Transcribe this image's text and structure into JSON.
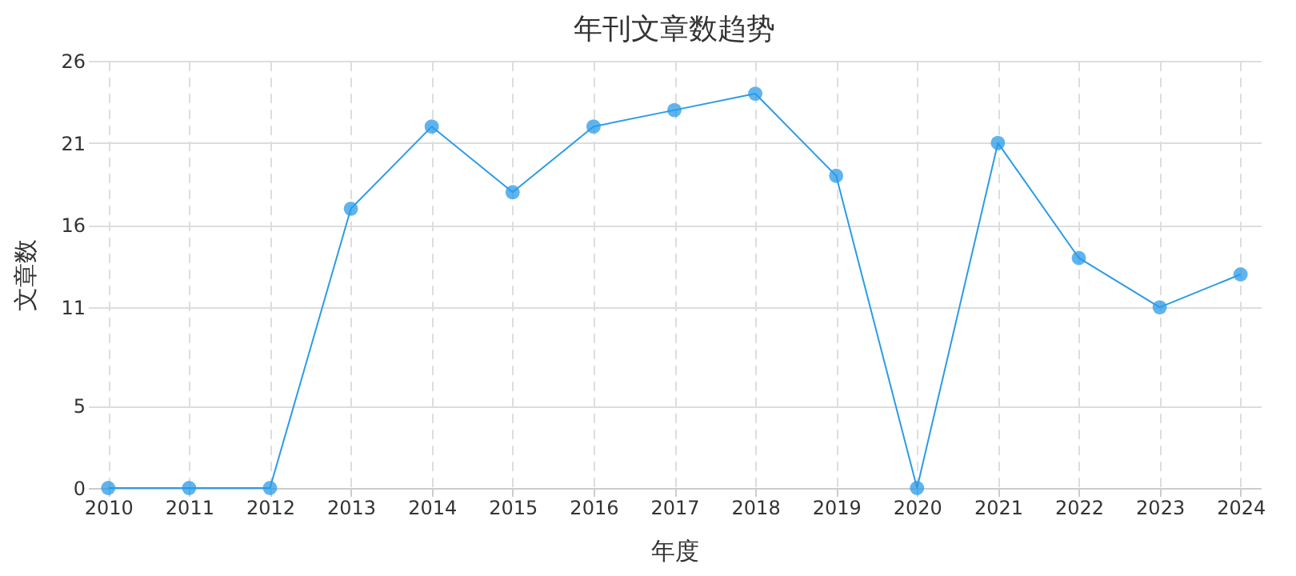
{
  "chart_data": {
    "type": "line",
    "title": "年刊文章数趋势",
    "xlabel": "年度",
    "ylabel": "文章数",
    "categories": [
      "2010",
      "2011",
      "2012",
      "2013",
      "2014",
      "2015",
      "2016",
      "2017",
      "2018",
      "2019",
      "2020",
      "2021",
      "2022",
      "2023",
      "2024"
    ],
    "series": [
      {
        "color": "#2b9be8",
        "values": [
          0,
          0,
          0,
          17,
          22,
          18,
          22,
          23,
          24,
          19,
          0,
          21,
          14,
          11,
          13
        ]
      }
    ],
    "ylim": [
      0,
      26
    ],
    "yticks": [
      0,
      5,
      11,
      16,
      21,
      26
    ],
    "grid": true,
    "marker": "circle",
    "line_style": "solid"
  }
}
